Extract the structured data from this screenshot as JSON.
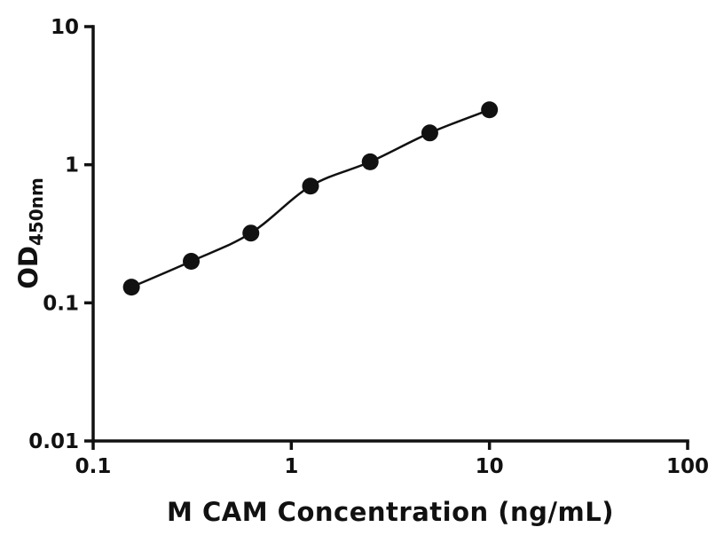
{
  "chart_data": {
    "type": "scatter",
    "title": "",
    "xlabel": "M CAM Concentration (ng/mL)",
    "ylabel_main": "OD",
    "ylabel_sub": "450nm",
    "xscale": "log",
    "yscale": "log",
    "xlim": [
      0.1,
      100
    ],
    "ylim": [
      0.01,
      10
    ],
    "x_ticks": [
      0.1,
      1,
      10,
      100
    ],
    "x_tick_labels": [
      "0.1",
      "1",
      "10",
      "100"
    ],
    "y_ticks": [
      0.01,
      0.1,
      1,
      10
    ],
    "y_tick_labels": [
      "0.01",
      "0.1",
      "1",
      "10"
    ],
    "grid": false,
    "legend": null,
    "series": [
      {
        "name": "standard-curve",
        "x": [
          0.156,
          0.3125,
          0.625,
          1.25,
          2.5,
          5,
          10
        ],
        "y": [
          0.13,
          0.2,
          0.32,
          0.7,
          1.05,
          1.7,
          2.5
        ]
      }
    ],
    "marker_color": "#111111",
    "line_color": "#111111",
    "axis_color": "#111111"
  }
}
